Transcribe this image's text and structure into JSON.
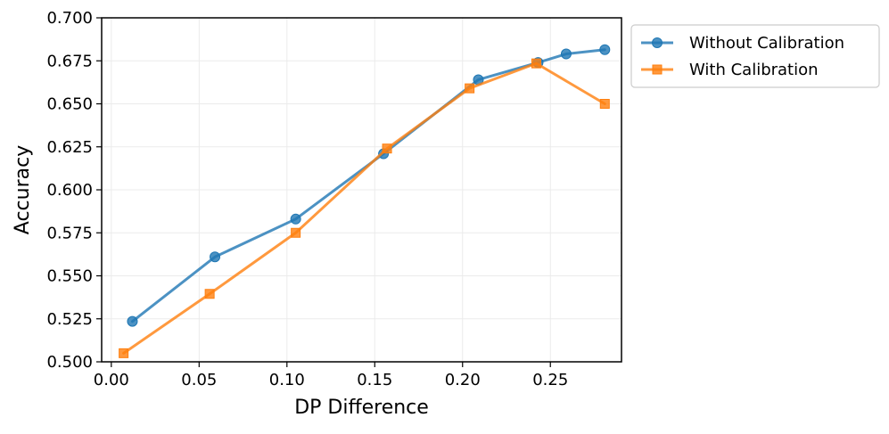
{
  "chart_data": {
    "type": "line",
    "xlabel": "DP Difference",
    "ylabel": "Accuracy",
    "xlim": [
      -0.0055,
      0.2905
    ],
    "ylim": [
      0.5,
      0.7
    ],
    "xticks": [
      "0.00",
      "0.05",
      "0.10",
      "0.15",
      "0.20",
      "0.25"
    ],
    "yticks": [
      "0.500",
      "0.525",
      "0.550",
      "0.575",
      "0.600",
      "0.625",
      "0.650",
      "0.675",
      "0.700"
    ],
    "grid": true,
    "legend_position": "outside-top-right",
    "series": [
      {
        "name": "Without Calibration",
        "color": "#1f77b4",
        "marker": "circle",
        "x": [
          0.012,
          0.059,
          0.105,
          0.155,
          0.209,
          0.243,
          0.259,
          0.281
        ],
        "y": [
          0.5235,
          0.561,
          0.583,
          0.621,
          0.664,
          0.674,
          0.679,
          0.6815
        ]
      },
      {
        "name": "With Calibration",
        "color": "#ff7f0e",
        "marker": "square",
        "x": [
          0.007,
          0.056,
          0.105,
          0.157,
          0.204,
          0.242,
          0.281
        ],
        "y": [
          0.505,
          0.5395,
          0.575,
          0.624,
          0.659,
          0.6735,
          0.65
        ]
      }
    ]
  }
}
